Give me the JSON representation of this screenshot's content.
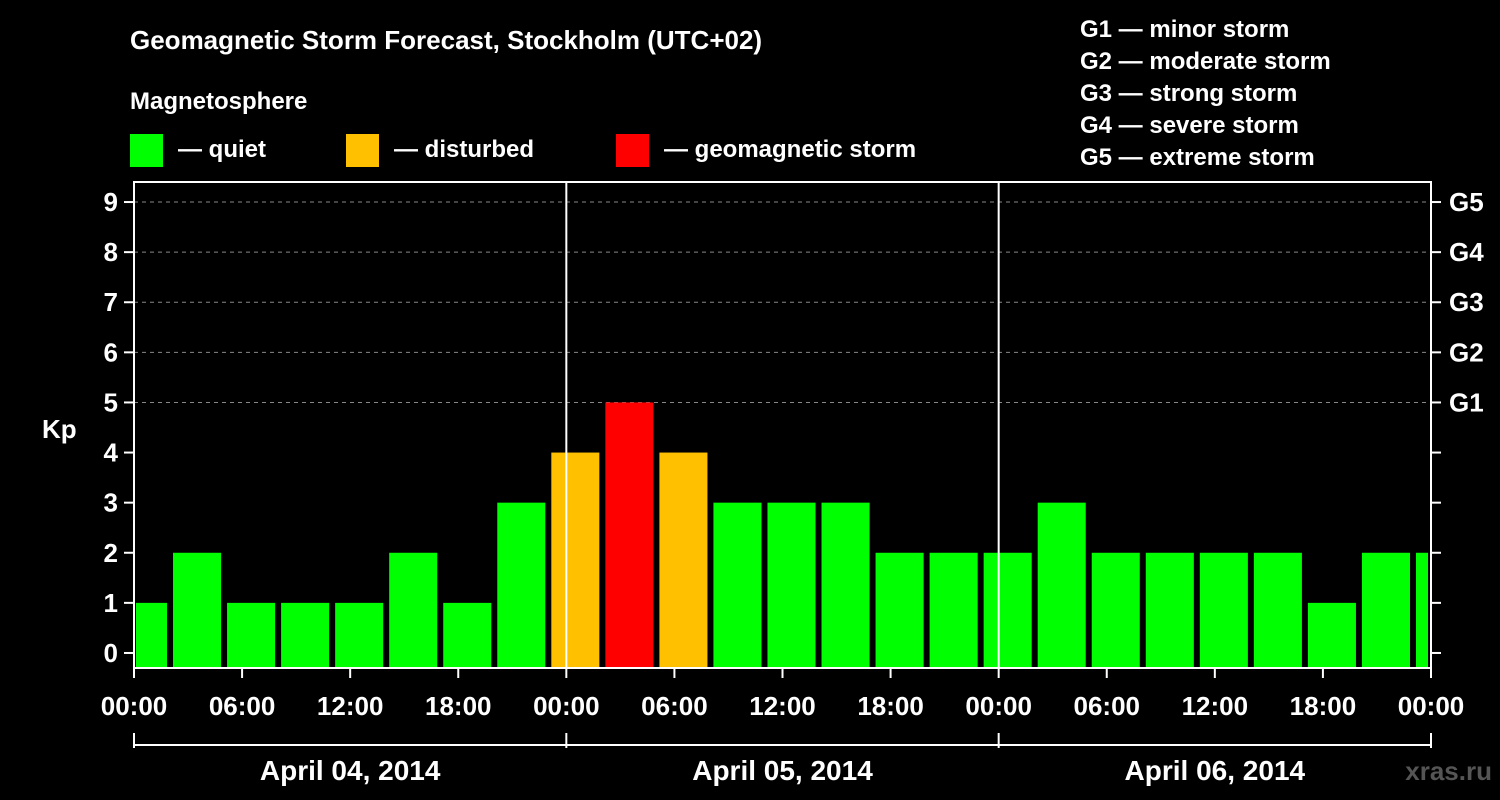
{
  "title": "Geomagnetic Storm Forecast, Stockholm (UTC+02)",
  "legend": {
    "heading": "Magnetosphere",
    "items": [
      {
        "label": "— quiet",
        "color": "#00ff00"
      },
      {
        "label": "— disturbed",
        "color": "#ffc000"
      },
      {
        "label": "— geomagnetic storm",
        "color": "#ff0000"
      }
    ]
  },
  "storm_scale": [
    "G1 — minor storm",
    "G2 — moderate storm",
    "G3 — strong storm",
    "G4 — severe storm",
    "G5 — extreme storm"
  ],
  "watermark": "xras.ru",
  "chart_data": {
    "type": "bar",
    "ylabel": "Kp",
    "ylim": [
      -0.3,
      9.4
    ],
    "yticks": [
      "0",
      "1",
      "2",
      "3",
      "4",
      "5",
      "6",
      "7",
      "8",
      "9"
    ],
    "right_ticks": [
      {
        "kp": 5,
        "label": "G1"
      },
      {
        "kp": 6,
        "label": "G2"
      },
      {
        "kp": 7,
        "label": "G3"
      },
      {
        "kp": 8,
        "label": "G4"
      },
      {
        "kp": 9,
        "label": "G5"
      }
    ],
    "grid": "dashed horizontal at Kp 5-9",
    "x_hours_range": [
      0,
      72
    ],
    "xticks": [
      "00:00",
      "06:00",
      "12:00",
      "18:00",
      "00:00",
      "06:00",
      "12:00",
      "18:00",
      "00:00",
      "06:00",
      "12:00",
      "18:00",
      "00:00"
    ],
    "days": [
      "April 04, 2014",
      "April 05, 2014",
      "April 06, 2014"
    ],
    "bar_start_hours": [
      0,
      2,
      5,
      8,
      11,
      14,
      17,
      20,
      23,
      26,
      29,
      32,
      35,
      38,
      41,
      44,
      47,
      50,
      53,
      56,
      59,
      62,
      65,
      68,
      71
    ],
    "bar_end_hours": [
      2,
      5,
      8,
      11,
      14,
      17,
      20,
      23,
      26,
      29,
      32,
      35,
      38,
      41,
      44,
      47,
      50,
      53,
      56,
      59,
      62,
      65,
      68,
      71,
      72
    ],
    "values": [
      1,
      2,
      1,
      1,
      1,
      2,
      1,
      3,
      4,
      5,
      4,
      3,
      3,
      3,
      2,
      2,
      2,
      3,
      2,
      2,
      2,
      2,
      1,
      2,
      2
    ],
    "color_thresholds": {
      "disturbed_at": 4,
      "storm_at": 5
    }
  }
}
